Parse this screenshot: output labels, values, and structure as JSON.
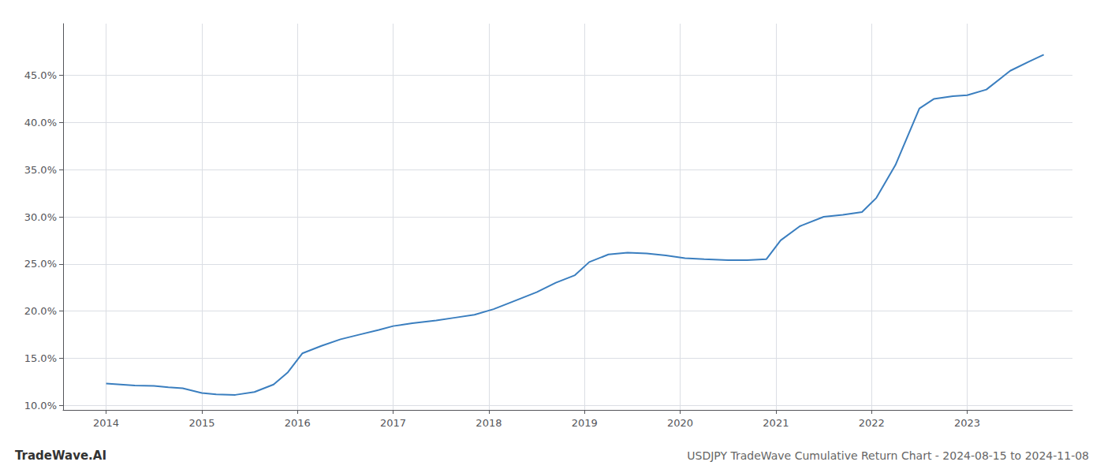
{
  "chart_data": {
    "type": "line",
    "title": "USDJPY TradeWave Cumulative Return Chart - 2024-08-15 to 2024-11-08",
    "annotations": [
      "TradeWave.AI"
    ],
    "color": "#3a7ebf",
    "x": [
      2014.0,
      2014.15,
      2014.3,
      2014.5,
      2014.65,
      2014.8,
      2015.0,
      2015.15,
      2015.35,
      2015.55,
      2015.75,
      2015.9,
      2016.05,
      2016.25,
      2016.45,
      2016.65,
      2016.85,
      2017.0,
      2017.2,
      2017.45,
      2017.65,
      2017.85,
      2018.05,
      2018.25,
      2018.5,
      2018.7,
      2018.9,
      2019.05,
      2019.25,
      2019.45,
      2019.65,
      2019.85,
      2020.05,
      2020.25,
      2020.5,
      2020.7,
      2020.9,
      2021.05,
      2021.25,
      2021.5,
      2021.7,
      2021.9,
      2022.05,
      2022.25,
      2022.5,
      2022.65,
      2022.85,
      2023.0,
      2023.2,
      2023.45,
      2023.65,
      2023.8
    ],
    "values": [
      12.3,
      12.2,
      12.1,
      12.05,
      11.9,
      11.8,
      11.3,
      11.15,
      11.1,
      11.4,
      12.2,
      13.5,
      15.5,
      16.3,
      17.0,
      17.5,
      18.0,
      18.4,
      18.7,
      19.0,
      19.3,
      19.6,
      20.2,
      21.0,
      22.0,
      23.0,
      23.8,
      25.2,
      26.0,
      26.2,
      26.1,
      25.9,
      25.6,
      25.5,
      25.4,
      25.4,
      25.5,
      27.5,
      29.0,
      30.0,
      30.2,
      30.5,
      32.0,
      35.5,
      41.5,
      42.5,
      42.8,
      42.9,
      43.5,
      45.5,
      46.5,
      47.2
    ],
    "xlim": [
      2013.55,
      2024.1
    ],
    "xticks": [
      2014,
      2015,
      2016,
      2017,
      2018,
      2019,
      2020,
      2021,
      2022,
      2023
    ],
    "ylim": [
      9.5,
      50.5
    ],
    "yticks": [
      {
        "value": 10.0,
        "label": "10.0%"
      },
      {
        "value": 15.0,
        "label": "15.0%"
      },
      {
        "value": 20.0,
        "label": "20.0%"
      },
      {
        "value": 25.0,
        "label": "25.0%"
      },
      {
        "value": 30.0,
        "label": "30.0%"
      },
      {
        "value": 35.0,
        "label": "35.0%"
      },
      {
        "value": 40.0,
        "label": "40.0%"
      },
      {
        "value": 45.0,
        "label": "45.0%"
      }
    ],
    "grid": true
  }
}
